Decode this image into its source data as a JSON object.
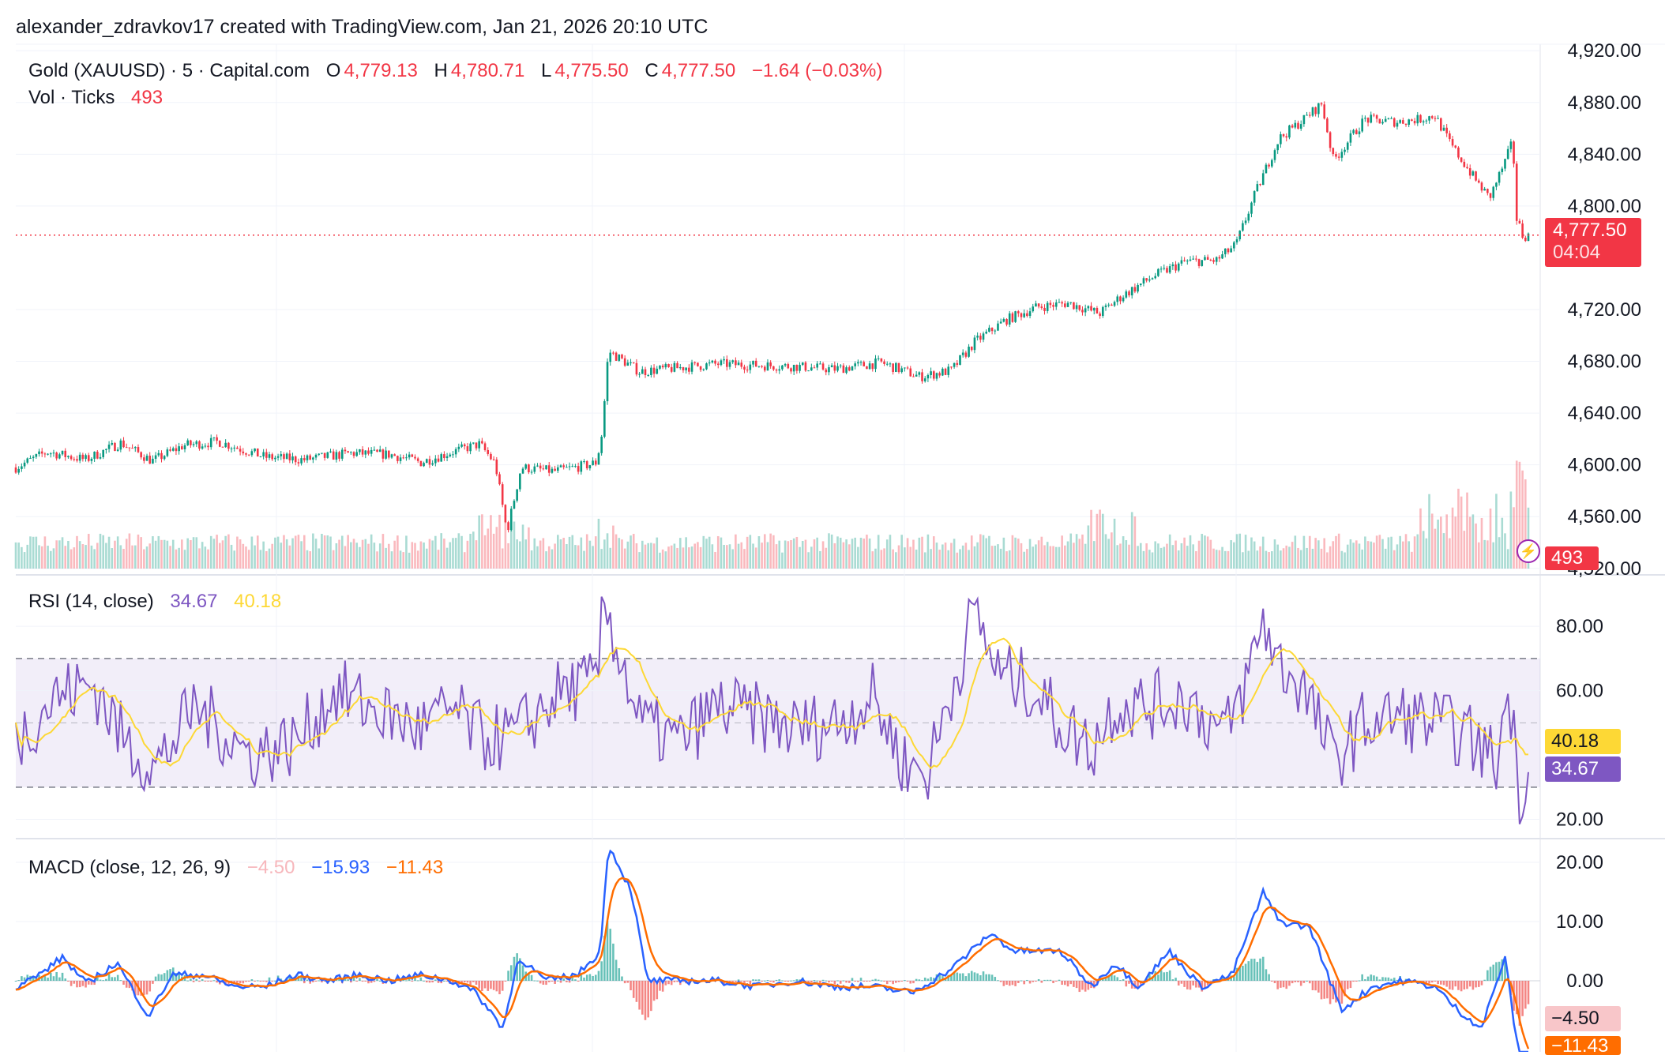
{
  "header": {
    "attribution": "alexander_zdravkov17 created with TradingView.com, Jan 21, 2026 20:10 UTC"
  },
  "symbol": {
    "name": "Gold (XAUUSD)",
    "interval": "5",
    "source": "Capital.com",
    "title_line": "Gold (XAUUSD) · 5 · Capital.com",
    "o_label": "O",
    "o": "4,779.13",
    "h_label": "H",
    "h": "4,780.71",
    "l_label": "L",
    "l": "4,775.50",
    "c_label": "C",
    "c": "4,777.50",
    "change": "−1.64 (−0.03%)"
  },
  "volume": {
    "label": "Vol · Ticks",
    "value": "493"
  },
  "price_tag": {
    "price": "4,777.50",
    "countdown": "04:04"
  },
  "rsi": {
    "label": "RSI (14, close)",
    "value": "34.67",
    "ma_value": "40.18"
  },
  "macd": {
    "label": "MACD (close, 12, 26, 9)",
    "hist": "−4.50",
    "macd": "−15.93",
    "signal": "−11.43"
  },
  "colors": {
    "up": "#089981",
    "down": "#f23645",
    "rsi": "#7e57c2",
    "rsi_ma": "#fdd835",
    "macd": "#2962ff",
    "signal": "#ff6d00"
  },
  "chart_data": [
    {
      "type": "candlestick",
      "title": "Gold (XAUUSD) · 5 · Capital.com",
      "y_ticks": [
        "4,920.00",
        "4,880.00",
        "4,840.00",
        "4,800.00",
        "4,720.00",
        "4,680.00",
        "4,640.00",
        "4,600.00",
        "4,560.00",
        "4,520.00"
      ],
      "y_tick_values": [
        4920,
        4880,
        4840,
        4800,
        4720,
        4680,
        4640,
        4600,
        4560,
        4520
      ],
      "ylim": [
        4515,
        4925
      ],
      "close_path": [
        [
          0,
          4598
        ],
        [
          40,
          4610
        ],
        [
          90,
          4604
        ],
        [
          135,
          4617
        ],
        [
          175,
          4603
        ],
        [
          215,
          4615
        ],
        [
          260,
          4618
        ],
        [
          320,
          4606
        ],
        [
          370,
          4604
        ],
        [
          430,
          4609
        ],
        [
          480,
          4608
        ],
        [
          520,
          4602
        ],
        [
          560,
          4610
        ],
        [
          595,
          4616
        ],
        [
          615,
          4601
        ],
        [
          630,
          4548
        ],
        [
          648,
          4598
        ],
        [
          690,
          4595
        ],
        [
          735,
          4600
        ],
        [
          745,
          4602
        ],
        [
          752,
          4625
        ],
        [
          760,
          4688
        ],
        [
          800,
          4672
        ],
        [
          850,
          4675
        ],
        [
          900,
          4678
        ],
        [
          950,
          4677
        ],
        [
          1000,
          4676
        ],
        [
          1050,
          4674
        ],
        [
          1110,
          4679
        ],
        [
          1160,
          4668
        ],
        [
          1200,
          4673
        ],
        [
          1230,
          4695
        ],
        [
          1270,
          4712
        ],
        [
          1310,
          4722
        ],
        [
          1350,
          4725
        ],
        [
          1390,
          4717
        ],
        [
          1420,
          4731
        ],
        [
          1460,
          4746
        ],
        [
          1500,
          4757
        ],
        [
          1540,
          4758
        ],
        [
          1565,
          4770
        ],
        [
          1590,
          4810
        ],
        [
          1620,
          4852
        ],
        [
          1650,
          4866
        ],
        [
          1675,
          4879
        ],
        [
          1690,
          4835
        ],
        [
          1730,
          4867
        ],
        [
          1770,
          4865
        ],
        [
          1800,
          4867
        ],
        [
          1820,
          4870
        ],
        [
          1840,
          4848
        ],
        [
          1870,
          4822
        ],
        [
          1890,
          4806
        ],
        [
          1910,
          4834
        ],
        [
          1920,
          4850
        ],
        [
          1925,
          4790
        ],
        [
          1933,
          4777
        ]
      ],
      "last_price": 4777.5
    },
    {
      "type": "bar",
      "title": "Vol · Ticks",
      "last_value": 493
    },
    {
      "type": "line",
      "title": "RSI (14, close)",
      "y_ticks": [
        "80.00",
        "60.00",
        "20.00"
      ],
      "y_tick_values": [
        80,
        60,
        20
      ],
      "band": [
        30,
        70
      ],
      "ylim": [
        14,
        96
      ],
      "series": [
        {
          "name": "RSI",
          "last": 34.67,
          "anchors": [
            [
              0,
              45
            ],
            [
              50,
              58
            ],
            [
              100,
              62
            ],
            [
              140,
              44
            ],
            [
              180,
              36
            ],
            [
              230,
              55
            ],
            [
              300,
              40
            ],
            [
              360,
              44
            ],
            [
              410,
              60
            ],
            [
              450,
              55
            ],
            [
              520,
              48
            ],
            [
              560,
              54
            ],
            [
              600,
              45
            ],
            [
              640,
              46
            ],
            [
              700,
              60
            ],
            [
              745,
              62
            ],
            [
              755,
              88
            ],
            [
              770,
              75
            ],
            [
              800,
              50
            ],
            [
              850,
              44
            ],
            [
              900,
              55
            ],
            [
              950,
              52
            ],
            [
              1000,
              48
            ],
            [
              1050,
              50
            ],
            [
              1100,
              58
            ],
            [
              1140,
              37
            ],
            [
              1170,
              35
            ],
            [
              1200,
              60
            ],
            [
              1230,
              85
            ],
            [
              1260,
              65
            ],
            [
              1300,
              62
            ],
            [
              1340,
              50
            ],
            [
              1380,
              42
            ],
            [
              1410,
              56
            ],
            [
              1450,
              55
            ],
            [
              1500,
              58
            ],
            [
              1550,
              46
            ],
            [
              1575,
              60
            ],
            [
              1600,
              82
            ],
            [
              1620,
              68
            ],
            [
              1650,
              62
            ],
            [
              1690,
              38
            ],
            [
              1730,
              50
            ],
            [
              1780,
              52
            ],
            [
              1820,
              50
            ],
            [
              1860,
              46
            ],
            [
              1900,
              38
            ],
            [
              1915,
              62
            ],
            [
              1928,
              28
            ],
            [
              1940,
              36
            ]
          ]
        },
        {
          "name": "RSI-based MA",
          "last": 40.18
        }
      ]
    },
    {
      "type": "line",
      "title": "MACD (close, 12, 26, 9)",
      "y_ticks": [
        "20.00",
        "10.00",
        "0.00"
      ],
      "y_tick_values": [
        20,
        10,
        0
      ],
      "ylim": [
        -12,
        24
      ],
      "series": [
        {
          "name": "MACD",
          "last": -15.93,
          "anchors": [
            [
              0,
              -1
            ],
            [
              30,
              1
            ],
            [
              60,
              4
            ],
            [
              90,
              -0.5
            ],
            [
              130,
              3
            ],
            [
              170,
              -6
            ],
            [
              200,
              1
            ],
            [
              240,
              1
            ],
            [
              280,
              -1
            ],
            [
              320,
              -1
            ],
            [
              360,
              1
            ],
            [
              400,
              0
            ],
            [
              440,
              1
            ],
            [
              480,
              0
            ],
            [
              520,
              1
            ],
            [
              560,
              0
            ],
            [
              590,
              -2
            ],
            [
              625,
              -8
            ],
            [
              645,
              4
            ],
            [
              680,
              0
            ],
            [
              720,
              1
            ],
            [
              750,
              5
            ],
            [
              760,
              23
            ],
            [
              790,
              15
            ],
            [
              810,
              0
            ],
            [
              850,
              0
            ],
            [
              900,
              0
            ],
            [
              950,
              -1
            ],
            [
              1000,
              0
            ],
            [
              1050,
              -1
            ],
            [
              1100,
              -1
            ],
            [
              1150,
              -2
            ],
            [
              1200,
              2
            ],
            [
              1250,
              8
            ],
            [
              1280,
              5
            ],
            [
              1340,
              5
            ],
            [
              1380,
              -1
            ],
            [
              1410,
              3
            ],
            [
              1440,
              -1
            ],
            [
              1480,
              5
            ],
            [
              1520,
              -1
            ],
            [
              1560,
              1
            ],
            [
              1600,
              15
            ],
            [
              1620,
              10
            ],
            [
              1660,
              9
            ],
            [
              1700,
              -5
            ],
            [
              1740,
              -1
            ],
            [
              1780,
              0
            ],
            [
              1820,
              -1
            ],
            [
              1850,
              -5
            ],
            [
              1880,
              -8
            ],
            [
              1910,
              4
            ],
            [
              1930,
              -15
            ]
          ]
        },
        {
          "name": "Signal",
          "last": -11.43
        },
        {
          "name": "Histogram",
          "last": -4.5
        }
      ]
    }
  ]
}
